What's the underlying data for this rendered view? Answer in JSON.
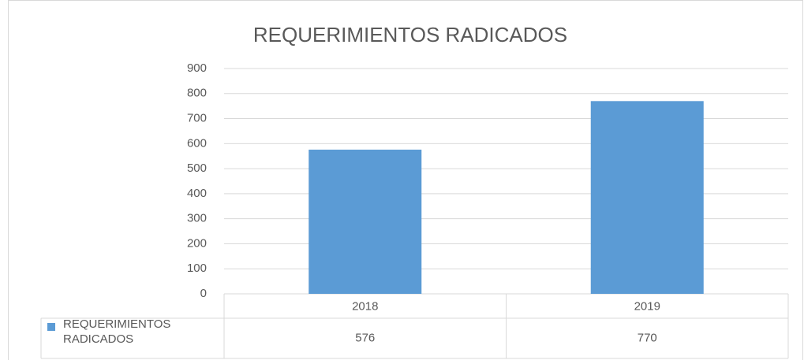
{
  "chart_data": {
    "type": "bar",
    "title": "REQUERIMIENTOS RADICADOS",
    "categories": [
      "2018",
      "2019"
    ],
    "series": [
      {
        "name": "REQUERIMIENTOS RADICADOS",
        "color": "#5b9bd5",
        "values": [
          576,
          770
        ]
      }
    ],
    "ylim": [
      0,
      900
    ],
    "yticks": [
      0,
      100,
      200,
      300,
      400,
      500,
      600,
      700,
      800,
      900
    ],
    "grid": true,
    "data_table": true
  }
}
